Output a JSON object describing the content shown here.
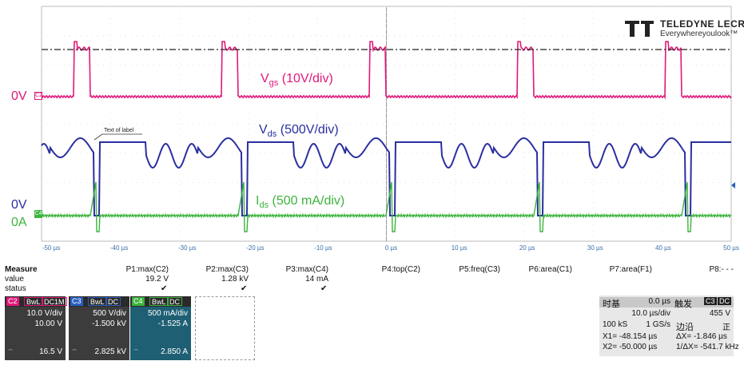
{
  "logo": {
    "brand": "TELEDYNE LECROY",
    "tagline": "Everywhereyoulook™"
  },
  "traces": {
    "vgs": {
      "name": "V",
      "sub": "gs",
      "scale": " (10V/div)",
      "ref": "0V",
      "color": "#e0187a"
    },
    "vds": {
      "name": "V",
      "sub": "ds",
      "scale": " (500V/div)",
      "ref": "0V",
      "color": "#2a2fa0"
    },
    "ids": {
      "name": "I",
      "sub": "ds",
      "scale": " (500 mA/div)",
      "ref": "0A",
      "color": "#3cb43c"
    }
  },
  "label_annotation": "Text of label",
  "x_ticks": [
    "-50 µs",
    "-40 µs",
    "-30 µs",
    "-20 µs",
    "-10 µs",
    "0 µs",
    "10 µs",
    "20 µs",
    "30 µs",
    "40 µs",
    "50 µs"
  ],
  "measure": {
    "header": "Measure",
    "row_value": "value",
    "row_status": "status",
    "params": [
      {
        "name": "P1:max(C2)",
        "value": "19.2 V",
        "ok": true
      },
      {
        "name": "P2:max(C3)",
        "value": "1.28 kV",
        "ok": true
      },
      {
        "name": "P3:max(C4)",
        "value": "14 mA",
        "ok": true
      },
      {
        "name": "P4:top(C2)",
        "value": "",
        "ok": false
      },
      {
        "name": "P5:freq(C3)",
        "value": "",
        "ok": false
      },
      {
        "name": "P6:area(C1)",
        "value": "",
        "ok": false
      },
      {
        "name": "P7:area(F1)",
        "value": "",
        "ok": false
      },
      {
        "name": "P8:- - -",
        "value": "",
        "ok": false
      }
    ]
  },
  "channels": [
    {
      "id": "C2",
      "bwl": "BwL",
      "coupling": "DC1M",
      "vdiv": "10.0 V/div",
      "offset": "10.00 V",
      "readout": "16.5 V",
      "color": "#e0187a"
    },
    {
      "id": "C3",
      "bwl": "BwL",
      "coupling": "DC",
      "vdiv": "500 V/div",
      "offset": "-1.500 kV",
      "readout": "2.825 kV",
      "color": "#2a5fc0"
    },
    {
      "id": "C4",
      "bwl": "BwL",
      "coupling": "DC",
      "vdiv": "500 mA/div",
      "offset": "-1.525 A",
      "readout": "2.850 A",
      "color": "#3cb43c"
    }
  ],
  "readout_prefix": "∙-∙",
  "timebase": {
    "label": "时基",
    "delay": "0.0 µs",
    "trig_label": "触发",
    "trig_ch": "C3",
    "trig_cpl": "DC",
    "tdiv": "10.0 µs/div",
    "trig_level": "455 V",
    "samples": "100 kS",
    "rate": "1 GS/s",
    "edge_label": "边沿",
    "slope": "正",
    "x1": "X1= -48.154 µs",
    "dx": "ΔX= -1.846 µs",
    "x2": "X2= -50.000 µs",
    "invdx": "1/ΔX= -541.7 kHz"
  }
}
